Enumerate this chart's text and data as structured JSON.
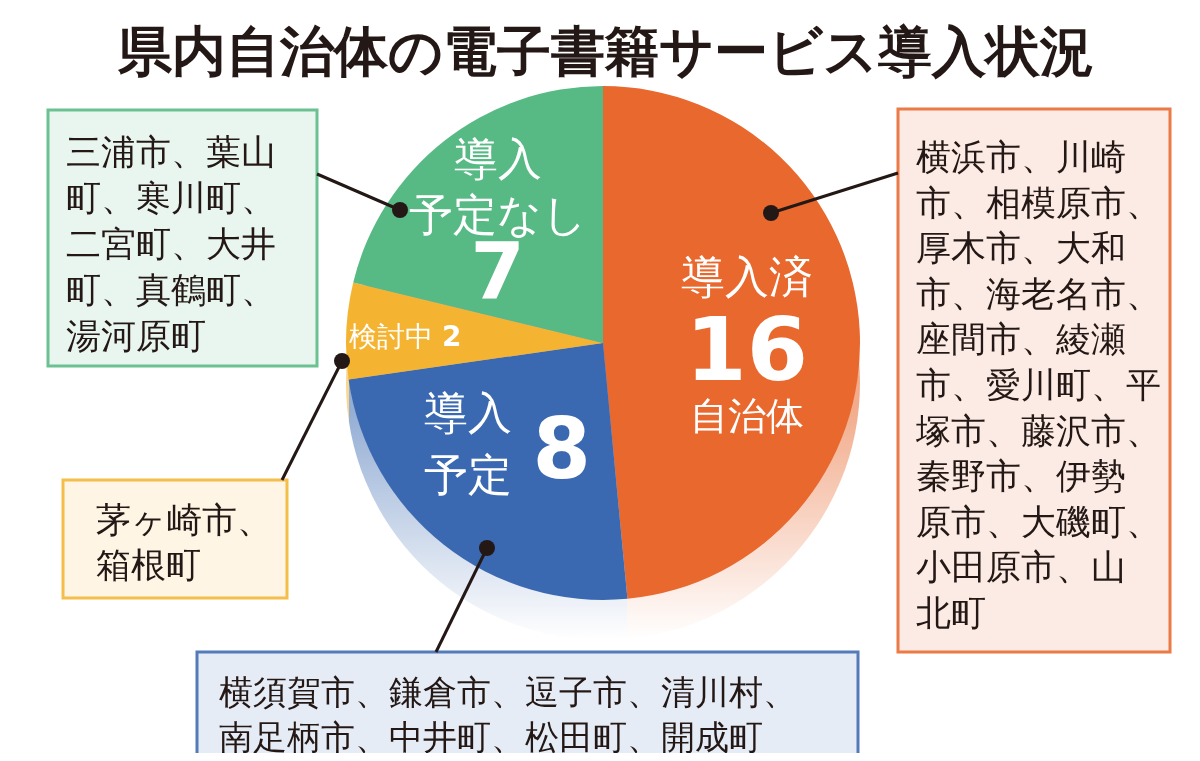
{
  "chart_data": {
    "type": "pie",
    "title": "県内自治体の電子書籍サービス導入状況",
    "categories": [
      "導入済",
      "導入予定",
      "検討中",
      "導入予定なし"
    ],
    "values": [
      16,
      8,
      2,
      7
    ],
    "colors": [
      "#e8682e",
      "#3b69b1",
      "#f4b431",
      "#57b983"
    ],
    "data_labels": true,
    "annotations": [
      "自治体",
      "横浜市、川崎市、相模原市、厚木市、大和市、海老名市、座間市、綾瀬市、愛川町、平塚市、藤沢市、秦野市、伊勢原市、大磯町、小田原市、山北町",
      "横須賀市、鎌倉市、逗子市、清川村、南足柄市、中井町、松田町、開成町",
      "茅ヶ崎市、箱根町",
      "三浦市、葉山町、寒川町、二宮町、大井町、真鶴町、湯河原町"
    ]
  }
}
